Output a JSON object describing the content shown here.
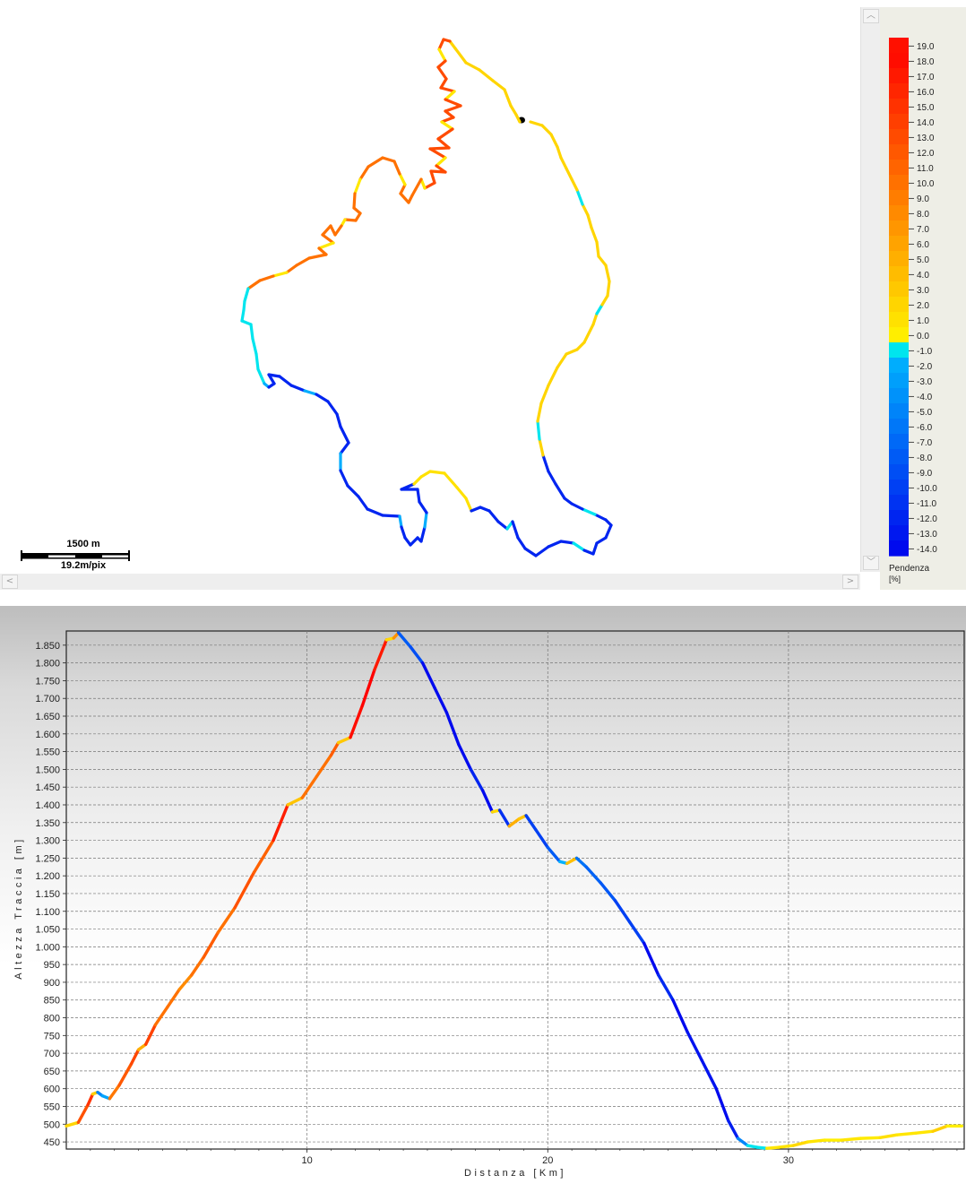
{
  "map": {
    "scale_distance": "1500 m",
    "scale_resolution": "19.2m/pix"
  },
  "legend": {
    "title": "Pendenza",
    "unit": "[%]",
    "ticks": [
      "19.0",
      "18.0",
      "17.0",
      "16.0",
      "15.0",
      "14.0",
      "13.0",
      "12.0",
      "11.0",
      "10.0",
      "9.0",
      "8.0",
      "7.0",
      "6.0",
      "5.0",
      "4.0",
      "3.0",
      "2.0",
      "1.0",
      "0.0",
      "-1.0",
      "-2.0",
      "-3.0",
      "-4.0",
      "-5.0",
      "-6.0",
      "-7.0",
      "-8.0",
      "-9.0",
      "-10.0",
      "-11.0",
      "-12.0",
      "-13.0",
      "-14.0"
    ],
    "colors": {
      "steep_up": "#ff1a00",
      "up": "#ff8000",
      "gentle_up": "#ffee00",
      "flat_down": "#00e5ee",
      "down": "#1e90ff",
      "steep_down": "#0010ee"
    }
  },
  "chart_data": {
    "type": "line",
    "xlabel": "Distanza [Km]",
    "ylabel": "Altezza Traccia [m]",
    "xlim": [
      0,
      37.3
    ],
    "ylim": [
      430,
      1890
    ],
    "x_ticks": [
      "10",
      "20",
      "30"
    ],
    "y_ticks": [
      "1.850",
      "1.800",
      "1.750",
      "1.700",
      "1.650",
      "1.600",
      "1.550",
      "1.500",
      "1.450",
      "1.400",
      "1.350",
      "1.300",
      "1.250",
      "1.200",
      "1.150",
      "1.100",
      "1.050",
      "1.000",
      "950",
      "900",
      "850",
      "800",
      "750",
      "700",
      "650",
      "600",
      "550",
      "500",
      "450"
    ],
    "grid": true,
    "series": [
      {
        "values_note_excluded": true,
        "x": [
          0,
          0.5,
          0.9,
          1.1,
          1.3,
          1.5,
          1.8,
          2.2,
          2.7,
          3.0,
          3.3,
          3.7,
          4.2,
          4.7,
          5.2,
          5.7,
          6.3,
          7.0,
          7.8,
          8.6,
          9.2,
          9.8,
          10.4,
          11.0,
          11.3,
          11.8,
          12.3,
          12.8,
          13.3,
          13.6,
          13.8,
          14.3,
          14.8,
          15.3,
          15.8,
          16.3,
          16.8,
          17.3,
          17.7,
          18.0,
          18.4,
          18.8,
          19.1,
          19.5,
          20.0,
          20.5,
          20.8,
          21.2,
          21.6,
          22.2,
          22.8,
          23.4,
          24.0,
          24.6,
          25.2,
          25.8,
          26.4,
          27.0,
          27.5,
          27.9,
          28.3,
          28.7,
          29.1,
          29.6,
          30.2,
          30.8,
          31.5,
          32.2,
          33.0,
          33.8,
          34.5,
          35.3,
          36.0,
          36.6,
          37.2
        ],
        "y": [
          495,
          505,
          555,
          585,
          590,
          580,
          572,
          610,
          670,
          710,
          725,
          780,
          830,
          880,
          920,
          970,
          1040,
          1110,
          1210,
          1300,
          1400,
          1420,
          1480,
          1540,
          1575,
          1590,
          1680,
          1780,
          1865,
          1870,
          1885,
          1845,
          1800,
          1730,
          1660,
          1570,
          1500,
          1440,
          1380,
          1385,
          1340,
          1360,
          1370,
          1330,
          1280,
          1240,
          1235,
          1250,
          1225,
          1180,
          1130,
          1070,
          1010,
          920,
          850,
          760,
          680,
          600,
          510,
          460,
          440,
          435,
          432,
          435,
          440,
          450,
          455,
          455,
          460,
          462,
          470,
          475,
          480,
          495,
          495
        ]
      }
    ]
  }
}
